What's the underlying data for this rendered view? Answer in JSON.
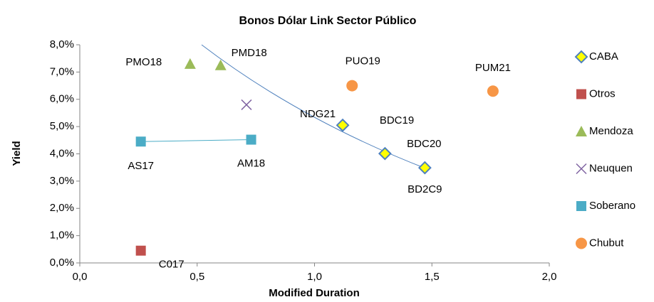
{
  "chart_data": {
    "type": "scatter",
    "title": "Bonos Dólar Link Sector Público",
    "x_label": "Modified Duration",
    "y_label": "Yield",
    "xlim": [
      0,
      2
    ],
    "ylim": [
      0,
      8
    ],
    "xticks": [
      {
        "value": 0,
        "label": "0,0"
      },
      {
        "value": 0.5,
        "label": "0,5"
      },
      {
        "value": 1,
        "label": "1,0"
      },
      {
        "value": 1.5,
        "label": "1,5"
      },
      {
        "value": 2,
        "label": "2,0"
      }
    ],
    "yticks": [
      {
        "value": 0,
        "label": "0,0%"
      },
      {
        "value": 1,
        "label": "1,0%"
      },
      {
        "value": 2,
        "label": "2,0%"
      },
      {
        "value": 3,
        "label": "3,0%"
      },
      {
        "value": 4,
        "label": "4,0%"
      },
      {
        "value": 5,
        "label": "5,0%"
      },
      {
        "value": 6,
        "label": "6,0%"
      },
      {
        "value": 7,
        "label": "7,0%"
      },
      {
        "value": 8,
        "label": "8,0%"
      }
    ],
    "grid": false,
    "legend": "right",
    "series": [
      {
        "name": "CABA",
        "color": "#ffff00",
        "marker": "diamond",
        "x": [
          1.12,
          1.3,
          1.47
        ],
        "values": [
          5.05,
          4.01,
          3.49
        ],
        "labels": [
          "NDG21",
          "BDC20",
          "BD2C9"
        ]
      },
      {
        "name": "Otros",
        "color": "#c0504d",
        "marker": "square",
        "x": [
          0.26
        ],
        "values": [
          0.45
        ],
        "labels": [
          "C017"
        ]
      },
      {
        "name": "Mendoza",
        "color": "#9bbb59",
        "marker": "triangle",
        "x": [
          0.47,
          0.6
        ],
        "values": [
          7.3,
          7.25
        ],
        "labels": [
          "PMO18",
          "PMD18"
        ]
      },
      {
        "name": "Neuquen",
        "color": "#8064a2",
        "marker": "x",
        "x": [
          0.71
        ],
        "values": [
          5.8
        ]
      },
      {
        "name": "Soberano",
        "color": "#4bacc6",
        "marker": "square",
        "line": true,
        "x": [
          0.26,
          0.73
        ],
        "values": [
          4.45,
          4.52
        ],
        "labels": [
          "AS17",
          "AM18"
        ]
      },
      {
        "name": "Chubut",
        "color": "#f79646",
        "marker": "circle",
        "x": [
          1.16,
          1.76
        ],
        "values": [
          6.5,
          6.3
        ],
        "labels": [
          "PUO19",
          "PUM21"
        ]
      }
    ],
    "annotations": [
      "BDC19"
    ]
  }
}
